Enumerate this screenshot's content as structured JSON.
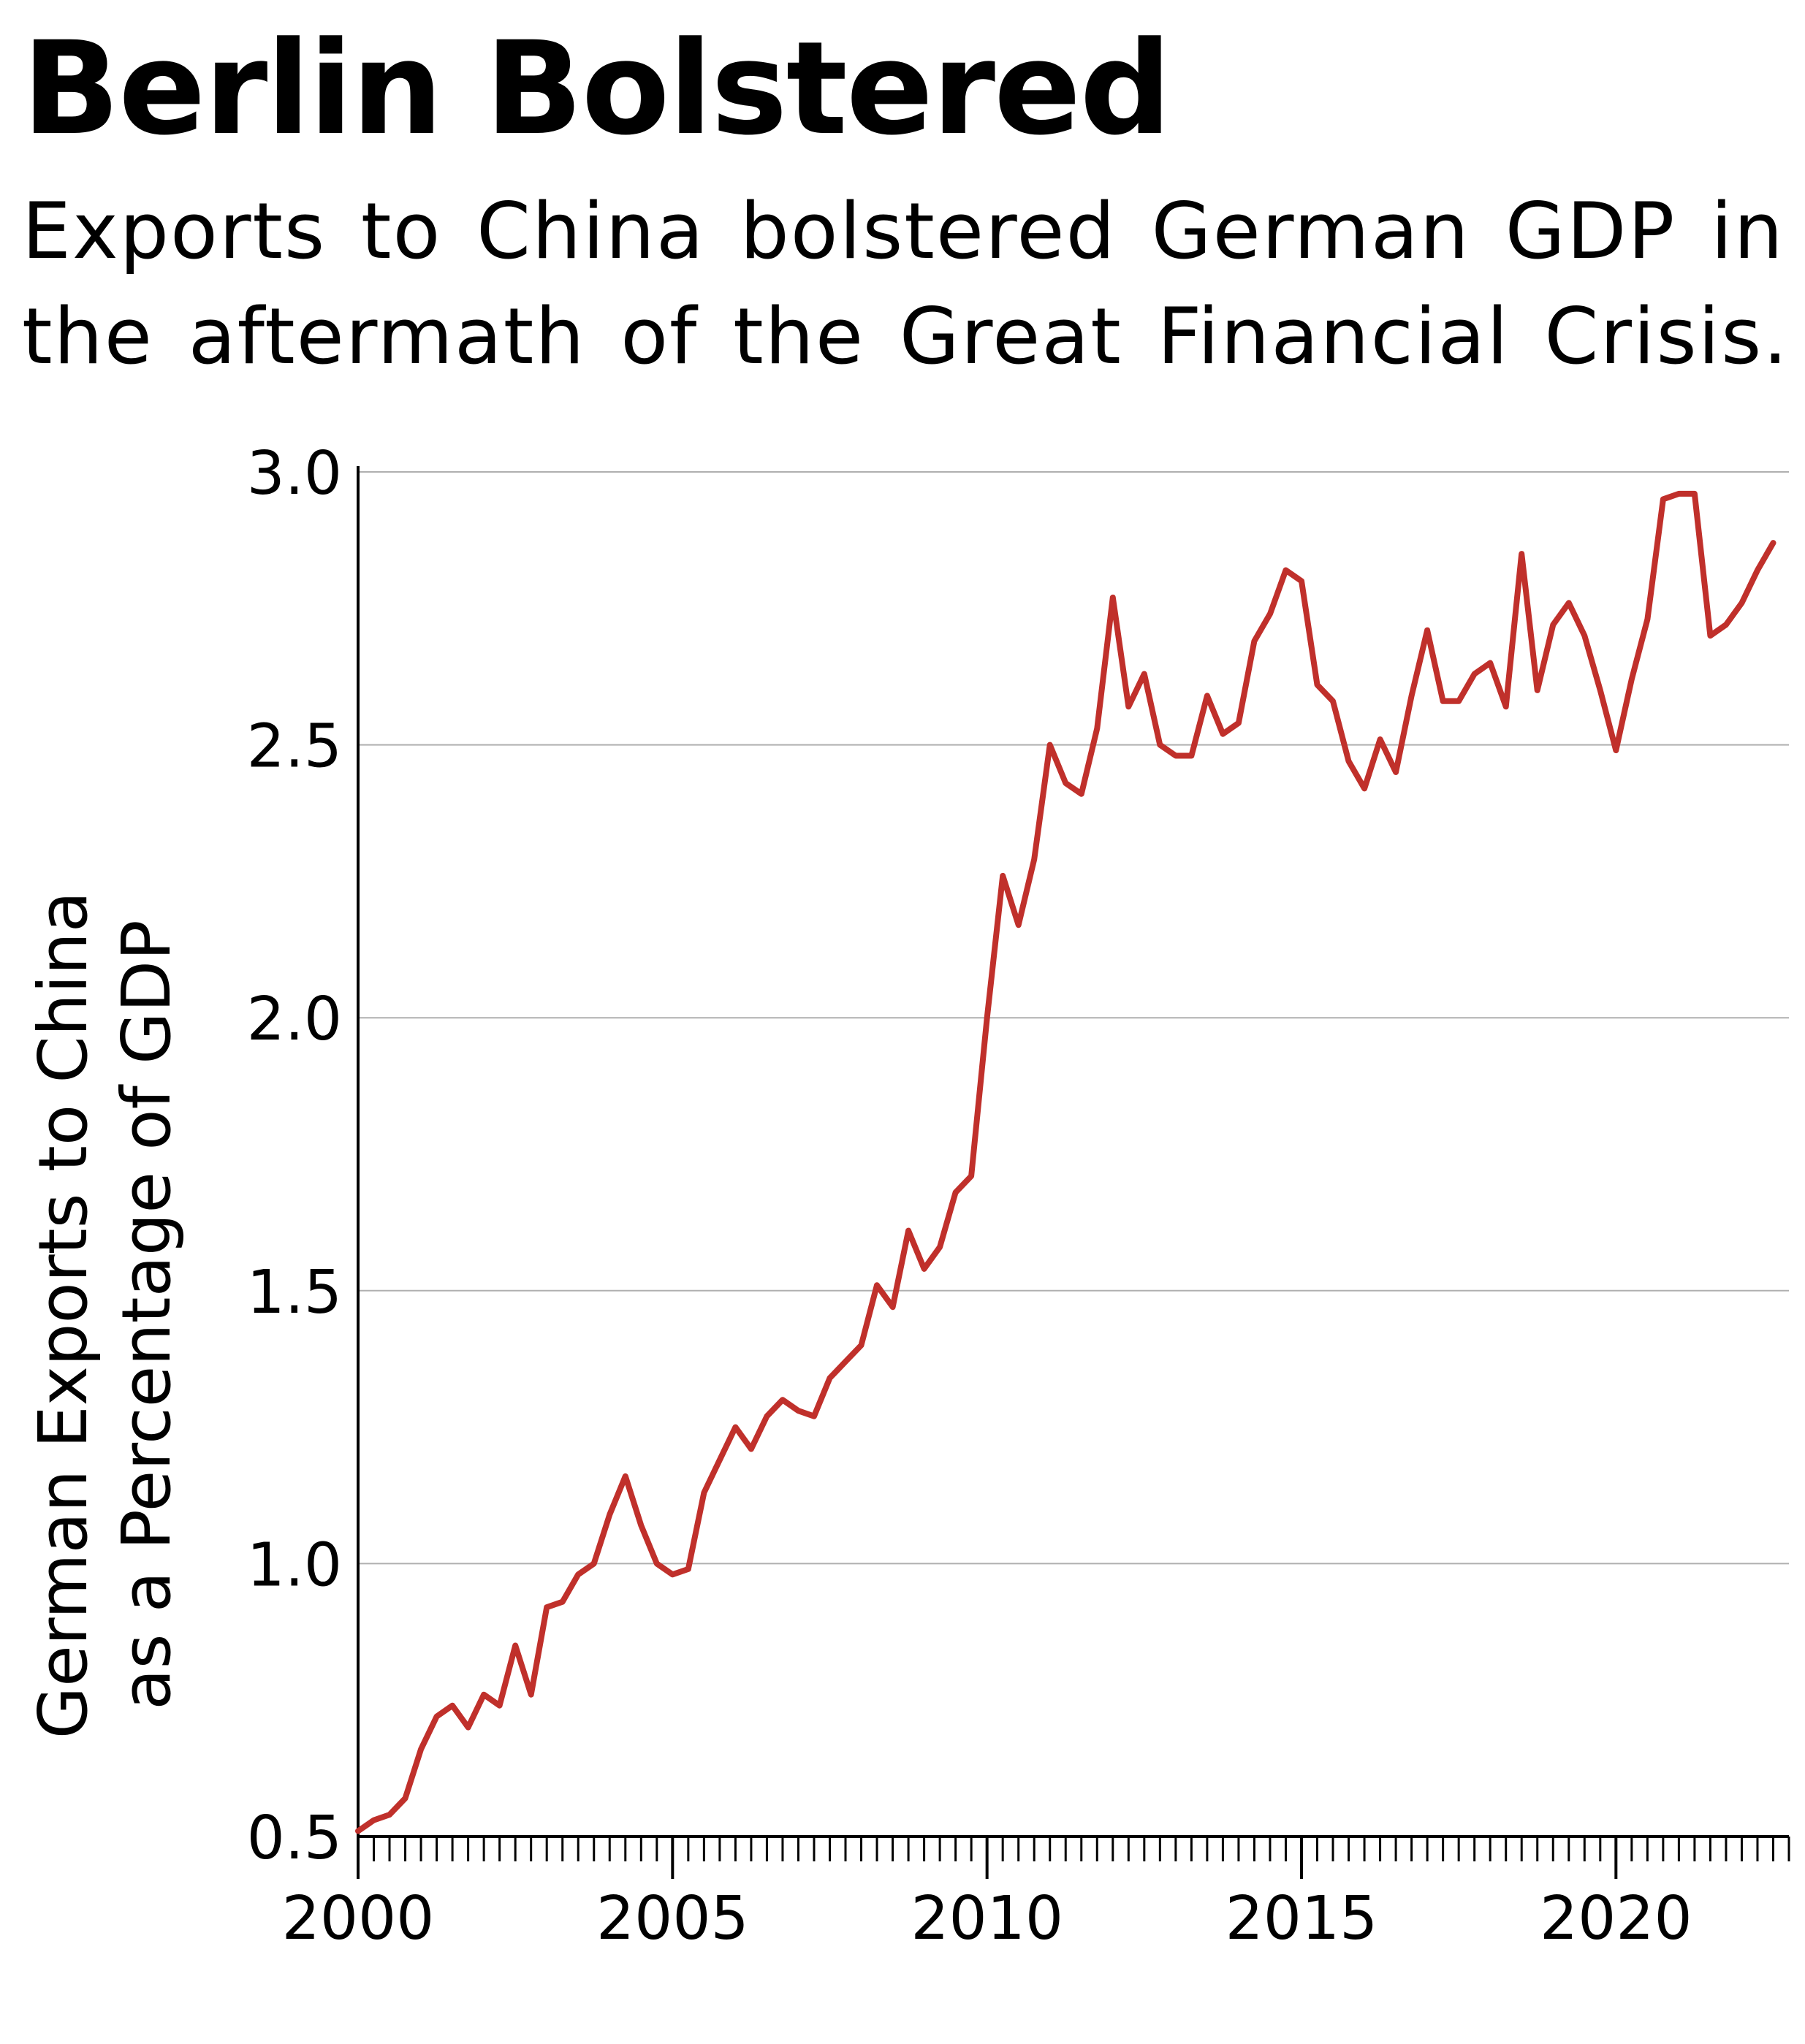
{
  "header": {
    "title": "Berlin Bolstered",
    "subtitle_line1": "Exports to China bolstered German GDP in",
    "subtitle_line2": "the aftermath of the Great Financial Crisis."
  },
  "colors": {
    "line": "#c0302b",
    "grid": "#b0b0b0",
    "axis": "#000000",
    "text": "#000000"
  },
  "chart_data": {
    "type": "line",
    "title": "Berlin Bolstered",
    "subtitle": "Exports to China bolstered German GDP in the aftermath of the Great Financial Crisis.",
    "xlabel": "",
    "ylabel_lines": [
      "German Exports to China",
      "as a Percentage of GDP"
    ],
    "xlim": [
      2000,
      2022.75
    ],
    "ylim": [
      0.5,
      3.0
    ],
    "x_ticks": [
      2000,
      2005,
      2010,
      2015,
      2020
    ],
    "x_tick_labels": [
      "2000",
      "2005",
      "2010",
      "2015",
      "2020"
    ],
    "y_ticks": [
      0.5,
      1.0,
      1.5,
      2.0,
      2.5,
      3.0
    ],
    "y_tick_labels": [
      "0.5",
      "1.0",
      "1.5",
      "2.0",
      "2.5",
      "3.0"
    ],
    "grid": true,
    "frequency": "quarterly",
    "series": [
      {
        "name": "German exports to China as % of GDP",
        "x_start": 2000.0,
        "x_step": 0.25,
        "values": [
          0.51,
          0.53,
          0.54,
          0.57,
          0.66,
          0.72,
          0.74,
          0.7,
          0.76,
          0.74,
          0.85,
          0.76,
          0.92,
          0.93,
          0.98,
          1.0,
          1.09,
          1.16,
          1.07,
          1.0,
          0.98,
          0.99,
          1.13,
          1.19,
          1.25,
          1.21,
          1.27,
          1.3,
          1.28,
          1.27,
          1.34,
          1.37,
          1.4,
          1.51,
          1.47,
          1.61,
          1.54,
          1.58,
          1.68,
          1.71,
          2.0,
          2.26,
          2.17,
          2.29,
          2.5,
          2.43,
          2.41,
          2.53,
          2.77,
          2.57,
          2.63,
          2.5,
          2.48,
          2.48,
          2.59,
          2.52,
          2.54,
          2.69,
          2.74,
          2.82,
          2.8,
          2.61,
          2.58,
          2.47,
          2.42,
          2.51,
          2.45,
          2.59,
          2.71,
          2.58,
          2.58,
          2.63,
          2.65,
          2.57,
          2.85,
          2.6,
          2.72,
          2.76,
          2.7,
          2.6,
          2.49,
          2.62,
          2.73,
          2.95,
          2.96,
          2.96,
          2.7,
          2.72,
          2.76,
          2.82,
          2.87
        ]
      }
    ]
  }
}
